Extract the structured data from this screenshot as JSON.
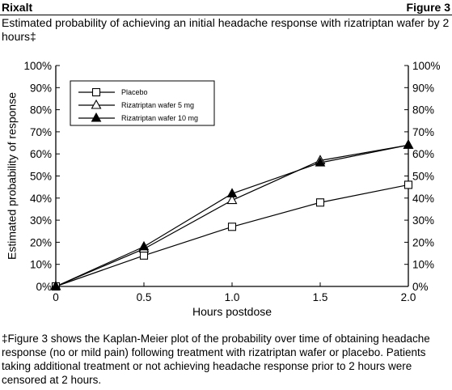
{
  "header": {
    "drug_name": "Rixalt",
    "figure_label": "Figure 3"
  },
  "caption": "Estimated probability of achieving an initial headache response with rizatriptan wafer by 2 hours‡",
  "footnote": "‡Figure 3 shows the Kaplan-Meier plot of the probability over time of obtaining headache response (no or mild pain) following treatment with rizatriptan wafer or placebo. Patients taking additional treatment or not achieving headache response prior to 2 hours were censored at 2 hours.",
  "chart_data": {
    "type": "line",
    "title": "",
    "xlabel": "Hours postdose",
    "ylabel": "Estimated probability of response",
    "xlim": [
      0,
      2.0
    ],
    "ylim": [
      0,
      100
    ],
    "x_ticks": [
      0,
      0.5,
      1.0,
      1.5,
      2.0
    ],
    "x_tick_labels": [
      "0",
      "0.5",
      "1.0",
      "1.5",
      "2.0"
    ],
    "y_ticks": [
      0,
      10,
      20,
      30,
      40,
      50,
      60,
      70,
      80,
      90,
      100
    ],
    "y_tick_labels": [
      "0%",
      "10%",
      "20%",
      "30%",
      "40%",
      "50%",
      "60%",
      "70%",
      "80%",
      "90%",
      "100%"
    ],
    "right_axis_mirror": true,
    "grid": false,
    "legend_position": "top-left",
    "series": [
      {
        "name": "Placebo",
        "marker": "open-square",
        "x": [
          0,
          0.5,
          1.0,
          1.5,
          2.0
        ],
        "values": [
          0,
          14,
          27,
          38,
          46
        ]
      },
      {
        "name": "Rizatriptan wafer 5 mg",
        "marker": "open-triangle",
        "x": [
          0,
          0.5,
          1.0,
          1.5,
          2.0
        ],
        "values": [
          0,
          17,
          39,
          57,
          64
        ]
      },
      {
        "name": "Rizatriptan wafer 10 mg",
        "marker": "filled-triangle",
        "x": [
          0,
          0.5,
          1.0,
          1.5,
          2.0
        ],
        "values": [
          0,
          18,
          42,
          56,
          64
        ]
      }
    ]
  }
}
